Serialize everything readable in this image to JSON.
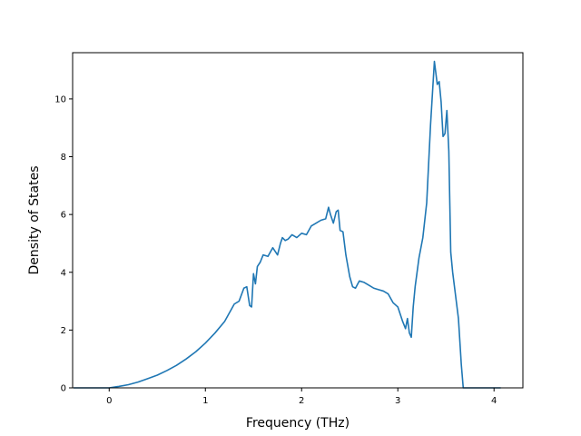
{
  "chart_data": {
    "type": "line",
    "title": "",
    "xlabel": "Frequency (THz)",
    "ylabel": "Density of States",
    "xlim": [
      -0.38,
      4.3
    ],
    "ylim": [
      0,
      11.6
    ],
    "xticks": [
      0,
      1,
      2,
      3,
      4
    ],
    "yticks": [
      0,
      2,
      4,
      6,
      8,
      10
    ],
    "grid": false,
    "legend": "none",
    "colors": {
      "line": "#1f77b4",
      "axes": "#000000"
    },
    "series": [
      {
        "x": [
          -0.37,
          0.0,
          0.1,
          0.2,
          0.3,
          0.4,
          0.5,
          0.6,
          0.7,
          0.8,
          0.9,
          1.0,
          1.1,
          1.2,
          1.3,
          1.35,
          1.4,
          1.43,
          1.46,
          1.48,
          1.5,
          1.52,
          1.54,
          1.57,
          1.6,
          1.65,
          1.7,
          1.75,
          1.78,
          1.8,
          1.83,
          1.86,
          1.9,
          1.95,
          2.0,
          2.05,
          2.1,
          2.15,
          2.2,
          2.25,
          2.28,
          2.3,
          2.33,
          2.36,
          2.38,
          2.4,
          2.43,
          2.46,
          2.5,
          2.53,
          2.56,
          2.6,
          2.65,
          2.7,
          2.75,
          2.8,
          2.85,
          2.9,
          2.95,
          3.0,
          3.05,
          3.08,
          3.1,
          3.12,
          3.14,
          3.16,
          3.18,
          3.22,
          3.26,
          3.3,
          3.34,
          3.36,
          3.38,
          3.41,
          3.43,
          3.45,
          3.47,
          3.49,
          3.51,
          3.53,
          3.55,
          3.57,
          3.6,
          3.63,
          3.66,
          3.68,
          3.7,
          3.75,
          3.85,
          4.07
        ],
        "y": [
          0,
          0,
          0.05,
          0.11,
          0.2,
          0.32,
          0.44,
          0.6,
          0.78,
          1.0,
          1.25,
          1.55,
          1.9,
          2.3,
          2.9,
          3.0,
          3.45,
          3.5,
          2.85,
          2.8,
          3.95,
          3.6,
          4.2,
          4.35,
          4.6,
          4.55,
          4.85,
          4.6,
          5.0,
          5.2,
          5.1,
          5.15,
          5.3,
          5.2,
          5.35,
          5.3,
          5.6,
          5.7,
          5.8,
          5.85,
          6.25,
          6.0,
          5.7,
          6.1,
          6.15,
          5.45,
          5.4,
          4.6,
          3.85,
          3.5,
          3.45,
          3.7,
          3.65,
          3.55,
          3.45,
          3.4,
          3.35,
          3.25,
          2.95,
          2.8,
          2.3,
          2.05,
          2.4,
          1.9,
          1.75,
          2.8,
          3.5,
          4.5,
          5.2,
          6.4,
          9.1,
          10.2,
          11.3,
          10.5,
          10.6,
          9.9,
          8.7,
          8.8,
          9.6,
          8.2,
          4.7,
          4.0,
          3.2,
          2.4,
          0.8,
          0.0,
          0,
          0,
          0,
          0
        ]
      }
    ]
  }
}
